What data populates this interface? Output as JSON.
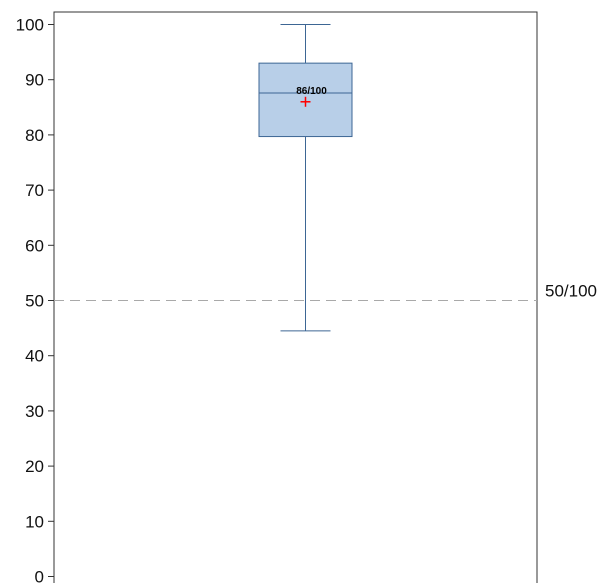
{
  "chart_data": {
    "type": "box",
    "title": "",
    "xlabel": "",
    "ylabel": "",
    "ylim": [
      0,
      100
    ],
    "yticks": [
      "0",
      "10",
      "20",
      "30",
      "40",
      "50",
      "60",
      "70",
      "80",
      "90",
      "100"
    ],
    "grid": false,
    "box": {
      "whisker_low": 44.5,
      "q1": 79.7,
      "median": 87.6,
      "q3": 93.0,
      "whisker_high": 100,
      "mean": 86,
      "mean_label": "86/100"
    },
    "reference_line": {
      "value": 50,
      "label": "50/100",
      "style": "dashed"
    },
    "colors": {
      "box_fill": "#b8cfe8",
      "box_stroke": "#3d6694",
      "mean_marker": "#ff0000",
      "reference_line": "#a9a9a9",
      "axis": "#333333"
    }
  }
}
